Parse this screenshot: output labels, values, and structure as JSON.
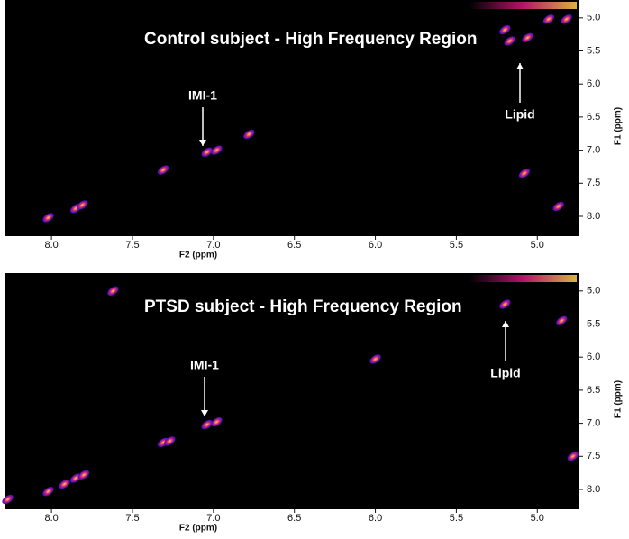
{
  "chart_data": [
    {
      "type": "scatter",
      "title": "Control subject - High Frequency Region",
      "x_label": "F2 (ppm)",
      "y_label": "F1 (ppm)",
      "xlim": [
        8.29,
        4.74
      ],
      "ylim": [
        4.73,
        8.3
      ],
      "xticks": [
        {
          "value": 8,
          "label": "8.0"
        },
        7.5,
        {
          "value": 7,
          "label": "7.0"
        },
        6.5,
        {
          "value": 6,
          "label": "6.0"
        },
        5.5,
        {
          "value": 5,
          "label": "5.0"
        }
      ],
      "yticks": [
        {
          "value": 5,
          "label": "5.0"
        },
        5.5,
        {
          "value": 6,
          "label": "6.0"
        },
        6.5,
        {
          "value": 7,
          "label": "7.0"
        },
        7.5,
        {
          "value": 8,
          "label": "8.0"
        }
      ],
      "colormap": [
        "#2a12c8",
        "#d0187c",
        "#ffd34a"
      ],
      "x": [
        8.02,
        7.85,
        7.81,
        7.31,
        7.04,
        6.98,
        6.78,
        5.2,
        5.17,
        5.06,
        4.93,
        4.82,
        5.08,
        4.87
      ],
      "y": [
        8.02,
        7.88,
        7.83,
        7.3,
        7.03,
        7.0,
        6.76,
        5.18,
        5.35,
        5.3,
        5.02,
        5.02,
        7.35,
        7.85
      ],
      "annotations": [
        "IMI-1",
        "Lipid"
      ]
    },
    {
      "type": "scatter",
      "title": "PTSD subject - High Frequency Region",
      "x_label": "F2 (ppm)",
      "y_label": "F1 (ppm)",
      "xlim": [
        8.29,
        4.74
      ],
      "ylim": [
        4.73,
        8.3
      ],
      "xticks": [
        {
          "value": 8,
          "label": "8.0"
        },
        7.5,
        {
          "value": 7,
          "label": "7.0"
        },
        6.5,
        {
          "value": 6,
          "label": "6.0"
        },
        5.5,
        {
          "value": 5,
          "label": "5.0"
        }
      ],
      "yticks": [
        {
          "value": 5,
          "label": "5.0"
        },
        5.5,
        {
          "value": 6,
          "label": "6.0"
        },
        6.5,
        {
          "value": 7,
          "label": "7.0"
        },
        7.5,
        {
          "value": 8,
          "label": "8.0"
        }
      ],
      "colormap": [
        "#2a12c8",
        "#d0187c",
        "#ffd34a"
      ],
      "x": [
        8.27,
        8.02,
        7.92,
        7.85,
        7.8,
        7.31,
        7.27,
        7.04,
        6.98,
        5.2,
        7.62,
        6.0,
        4.85,
        4.78
      ],
      "y": [
        8.15,
        8.03,
        7.92,
        7.83,
        7.78,
        7.29,
        7.27,
        7.02,
        6.98,
        5.2,
        5.0,
        6.03,
        5.45,
        7.5
      ],
      "annotations": [
        "IMI-1",
        "Lipid"
      ]
    }
  ]
}
